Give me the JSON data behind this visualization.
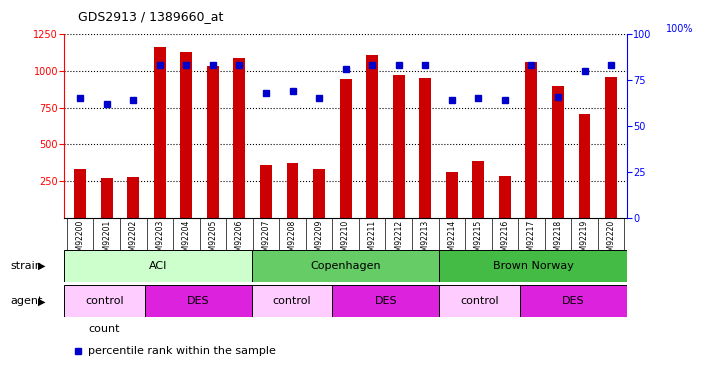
{
  "title": "GDS2913 / 1389660_at",
  "samples": [
    "GSM92200",
    "GSM92201",
    "GSM92202",
    "GSM92203",
    "GSM92204",
    "GSM92205",
    "GSM92206",
    "GSM92207",
    "GSM92208",
    "GSM92209",
    "GSM92210",
    "GSM92211",
    "GSM92212",
    "GSM92213",
    "GSM92214",
    "GSM92215",
    "GSM92216",
    "GSM92217",
    "GSM92218",
    "GSM92219",
    "GSM92220"
  ],
  "counts": [
    330,
    270,
    280,
    1160,
    1130,
    1035,
    1085,
    360,
    375,
    330,
    945,
    1105,
    975,
    950,
    310,
    385,
    285,
    1060,
    895,
    710,
    960
  ],
  "percentiles": [
    65,
    62,
    64,
    83,
    83,
    83,
    83,
    68,
    69,
    65,
    81,
    83,
    83,
    83,
    64,
    65,
    64,
    83,
    66,
    80,
    83
  ],
  "ylim_left": [
    0,
    1250
  ],
  "ylim_right": [
    0,
    100
  ],
  "yticks_left": [
    250,
    500,
    750,
    1000,
    1250
  ],
  "yticks_right": [
    0,
    25,
    50,
    75,
    100
  ],
  "bar_color": "#cc0000",
  "dot_color": "#0000cc",
  "bg_color": "#e8e8e8",
  "plot_bg": "#ffffff",
  "strain_groups": [
    {
      "label": "ACI",
      "start": 0,
      "end": 6,
      "color": "#ddffdd"
    },
    {
      "label": "Copenhagen",
      "start": 7,
      "end": 13,
      "color": "#66dd66"
    },
    {
      "label": "Brown Norway",
      "start": 14,
      "end": 20,
      "color": "#44cc44"
    }
  ],
  "agent_groups": [
    {
      "label": "control",
      "start": 0,
      "end": 2,
      "color": "#ffccff"
    },
    {
      "label": "DES",
      "start": 3,
      "end": 6,
      "color": "#dd44dd"
    },
    {
      "label": "control",
      "start": 7,
      "end": 9,
      "color": "#ffccff"
    },
    {
      "label": "DES",
      "start": 10,
      "end": 13,
      "color": "#dd44dd"
    },
    {
      "label": "control",
      "start": 14,
      "end": 16,
      "color": "#ffccff"
    },
    {
      "label": "DES",
      "start": 17,
      "end": 20,
      "color": "#dd44dd"
    }
  ]
}
